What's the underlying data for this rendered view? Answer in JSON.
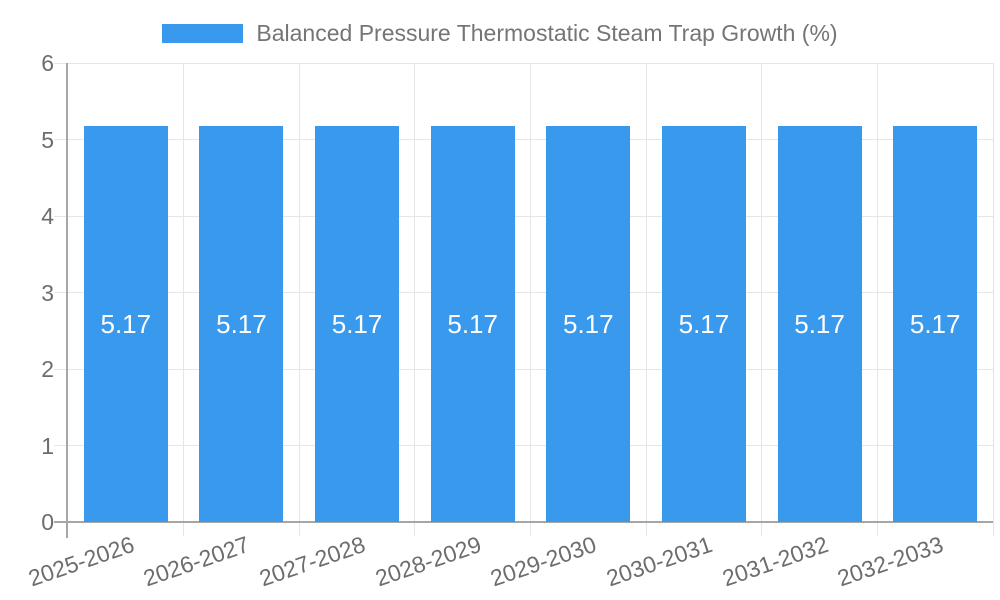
{
  "colors": {
    "background": "#ffffff",
    "bar": "#3999ed",
    "bar_label": "#ffffff",
    "title_text": "#757575",
    "tick_text": "#6d6d6d",
    "grid": "#e6e6e6",
    "axis": "#a6a6a6"
  },
  "chart_data": {
    "type": "bar",
    "title": "Balanced Pressure Thermostatic Steam Trap Growth (%)",
    "xlabel": "",
    "ylabel": "",
    "categories": [
      "2025-2026",
      "2026-2027",
      "2027-2028",
      "2028-2029",
      "2029-2030",
      "2030-2031",
      "2031-2032",
      "2032-2033"
    ],
    "values": [
      5.17,
      5.17,
      5.17,
      5.17,
      5.17,
      5.17,
      5.17,
      5.17
    ],
    "value_labels": [
      "5.17",
      "5.17",
      "5.17",
      "5.17",
      "5.17",
      "5.17",
      "5.17",
      "5.17"
    ],
    "ylim": [
      0,
      6
    ],
    "y_ticks": [
      0,
      1,
      2,
      3,
      4,
      5,
      6
    ],
    "grid": true,
    "legend_position": "top",
    "x_tick_rotation_deg": -19
  }
}
